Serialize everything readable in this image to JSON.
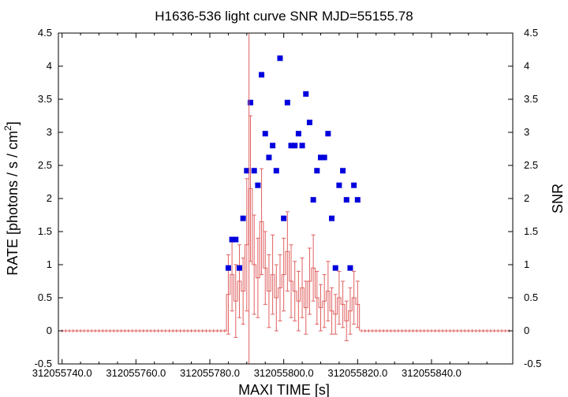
{
  "chart_data": {
    "type": "scatter",
    "title": "H1636-536 light curve  SNR MJD=55155.78",
    "xlabel": "MAXI TIME [s]",
    "ylabel_left": "RATE [photons / s / cm",
    "ylabel_left_sup": "2",
    "ylabel_left_tail": "]",
    "ylabel_right": "SNR",
    "xlim": [
      312055739,
      312055862
    ],
    "ylim": [
      -0.5,
      4.5
    ],
    "x_ticks": [
      312055740,
      312055760,
      312055780,
      312055800,
      312055820,
      312055840
    ],
    "x_tick_labels": [
      "312055740.0",
      "312055760.0",
      "312055780.0",
      "312055800.0",
      "312055820.0",
      "312055840.0"
    ],
    "y_ticks": [
      -0.5,
      0,
      0.5,
      1,
      1.5,
      2,
      2.5,
      3,
      3.5,
      4,
      4.5
    ],
    "y_tick_labels": [
      "-0.5",
      "0",
      "0.5",
      "1",
      "1.5",
      "2",
      "2.5",
      "3",
      "3.5",
      "4",
      "4.5"
    ],
    "y2_tick_labels": [
      "-0.5",
      "0",
      "0.5",
      "1",
      "1.5",
      "2",
      "2.5",
      "3",
      "3.5",
      "4",
      "4.5"
    ],
    "grid": false,
    "legend": "none",
    "colors": {
      "rate": "#e06060",
      "snr": "#0000dd",
      "marker_line": "#e06060",
      "axis": "#000000"
    },
    "vertical_marker_x": 312055790.6,
    "rate_zero_segments": [
      [
        312055740,
        312055784.8
      ],
      [
        312055820.8,
        312055861
      ]
    ],
    "rate_step": 1,
    "rate_series": {
      "x": [
        312055785,
        312055786,
        312055787,
        312055788,
        312055789,
        312055790,
        312055791,
        312055792,
        312055793,
        312055794,
        312055795,
        312055796,
        312055797,
        312055798,
        312055799,
        312055800,
        312055801,
        312055802,
        312055803,
        312055804,
        312055805,
        312055806,
        312055807,
        312055808,
        312055809,
        312055810,
        312055811,
        312055812,
        312055813,
        312055814,
        312055815,
        312055816,
        312055817,
        312055818,
        312055819,
        312055820
      ],
      "y": [
        0.55,
        0.85,
        0.45,
        0.75,
        0.6,
        1.3,
        2.15,
        1.0,
        0.8,
        1.65,
        0.95,
        0.6,
        0.85,
        0.5,
        0.65,
        0.85,
        1.2,
        0.75,
        0.6,
        0.45,
        0.65,
        0.35,
        0.75,
        0.95,
        0.5,
        0.35,
        0.45,
        0.6,
        0.3,
        0.25,
        0.5,
        0.4,
        0.15,
        0.3,
        0.5,
        0.4
      ],
      "err": [
        0.6,
        0.55,
        0.55,
        0.55,
        0.5,
        1.0,
        1.1,
        0.75,
        0.6,
        0.8,
        0.55,
        0.55,
        0.6,
        0.5,
        0.5,
        0.55,
        0.6,
        0.55,
        0.45,
        0.45,
        0.45,
        0.4,
        0.5,
        0.5,
        0.4,
        0.35,
        0.4,
        0.45,
        0.35,
        0.3,
        0.4,
        0.35,
        0.3,
        0.35,
        0.4,
        0.35
      ]
    },
    "snr_series": {
      "x": [
        312055785,
        312055786,
        312055787,
        312055788,
        312055789,
        312055790,
        312055791,
        312055792,
        312055793,
        312055794,
        312055795,
        312055796,
        312055797,
        312055798,
        312055799,
        312055800,
        312055801,
        312055802,
        312055803,
        312055804,
        312055805,
        312055806,
        312055807,
        312055808,
        312055809,
        312055810,
        312055811,
        312055812,
        312055813,
        312055814,
        312055815,
        312055816,
        312055817,
        312055818,
        312055819,
        312055820
      ],
      "y": [
        0.95,
        1.38,
        1.38,
        0.95,
        1.7,
        2.42,
        3.45,
        2.42,
        2.2,
        3.87,
        2.98,
        2.62,
        2.8,
        2.42,
        4.12,
        1.7,
        3.45,
        2.8,
        2.8,
        2.98,
        2.8,
        3.58,
        3.15,
        1.98,
        2.42,
        2.62,
        2.62,
        2.98,
        1.7,
        0.95,
        2.2,
        2.42,
        1.98,
        0.95,
        2.2,
        1.98
      ]
    }
  }
}
